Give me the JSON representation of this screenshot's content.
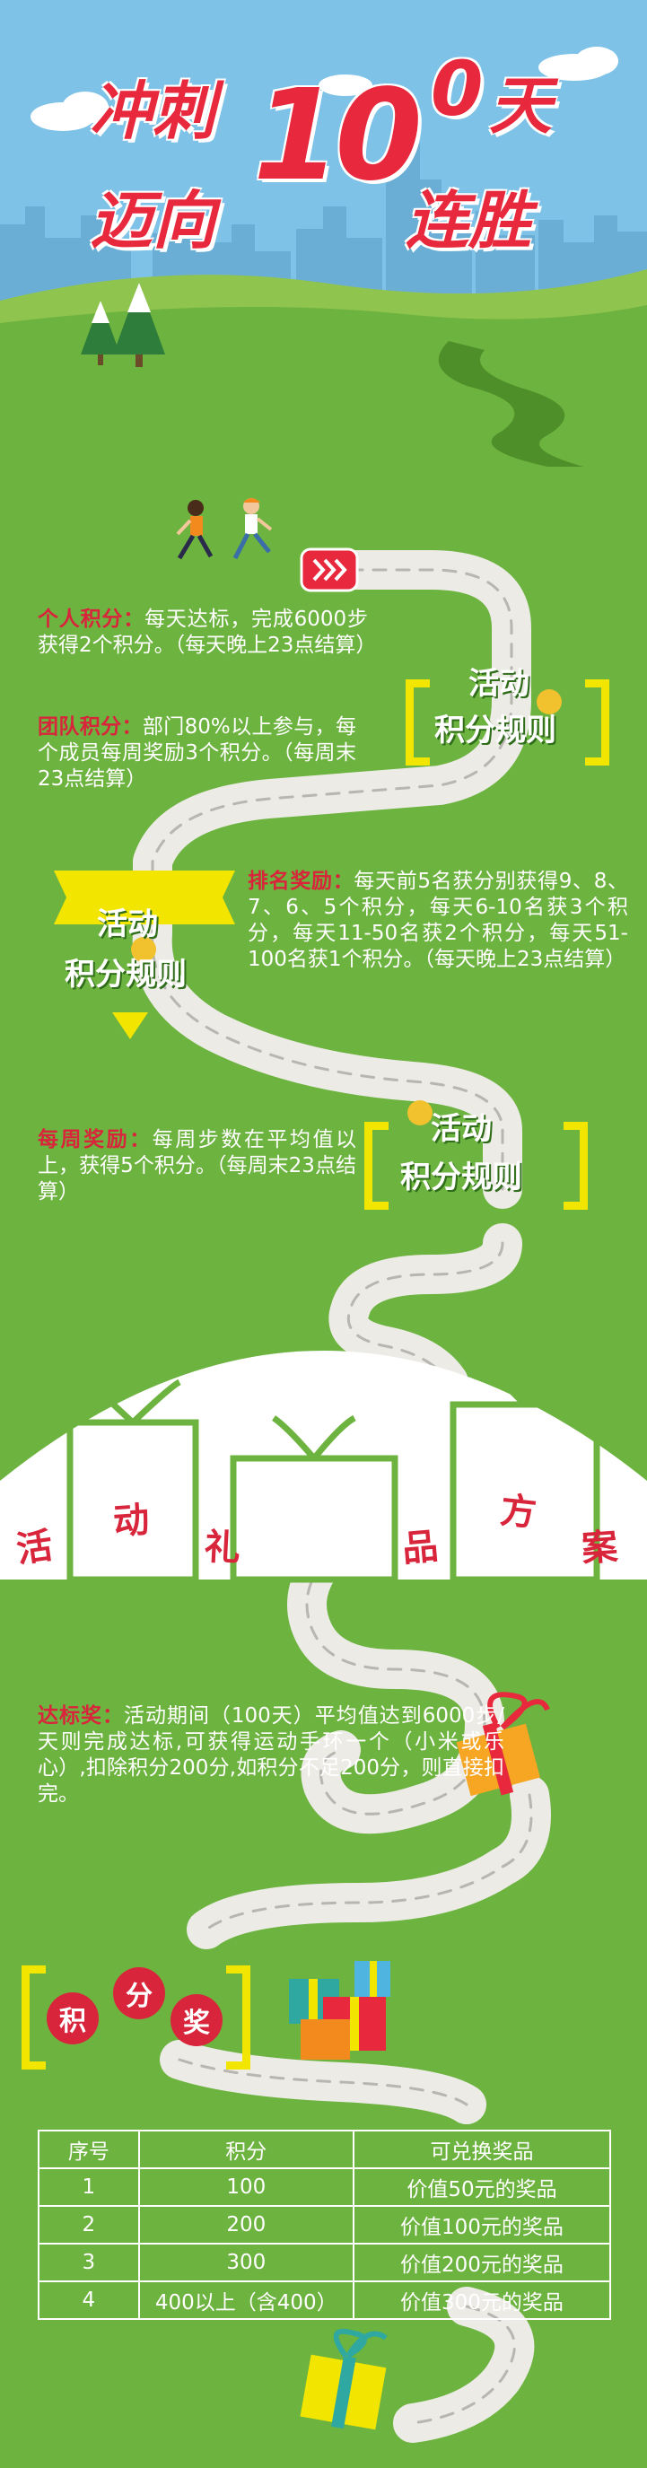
{
  "header": {
    "line1": "冲刺",
    "big_number": "10",
    "small_number": "0",
    "unit": "天",
    "line2": "迈向",
    "line2_tail": "连胜"
  },
  "section_title": {
    "line1": "活动",
    "line2": "积分规则"
  },
  "rules": [
    {
      "label": "个人积分：",
      "text": "每天达标，完成6000步获得2个积分。（每天晚上23点结算）"
    },
    {
      "label": "团队积分：",
      "text": "部门80%以上参与，每个成员每周奖励3个积分。（每周末23点结算）"
    },
    {
      "label": "排名奖励：",
      "text": "每天前5名获分别获得9、8、7、6、5个积分，每天6-10名获3个积分，每天11-50名获2个积分，每天51-100名获1个积分。（每天晚上23点结算）"
    },
    {
      "label": "每周奖励：",
      "text": "每周步数在平均值以上，获得5个积分。（每周末23点结算）"
    }
  ],
  "gift_section": {
    "chars": [
      "活",
      "动",
      "礼",
      "品",
      "方",
      "案"
    ]
  },
  "achievement": {
    "label": "达标奖：",
    "text": "活动期间（100天）平均值达到6000步/天则完成达标,可获得运动手环一个（小米或乐心）,扣除积分200分,如积分不足200分，则直接扣完。"
  },
  "points_prize": {
    "chars": [
      "积",
      "分",
      "奖"
    ]
  },
  "prize_table": {
    "headers": [
      "序号",
      "积分",
      "可兑换奖品"
    ],
    "rows": [
      [
        "1",
        "100",
        "价值50元的奖品"
      ],
      [
        "2",
        "200",
        "价值100元的奖品"
      ],
      [
        "3",
        "300",
        "价值200元的奖品"
      ],
      [
        "4",
        "400以上（含400）",
        "价值300元的奖品"
      ]
    ]
  },
  "colors": {
    "grass": "#6db33f",
    "sky": "#7fc2e8",
    "accent_red": "#d9253b",
    "bracket_yellow": "#f2e500",
    "road": "#ecebe6"
  }
}
